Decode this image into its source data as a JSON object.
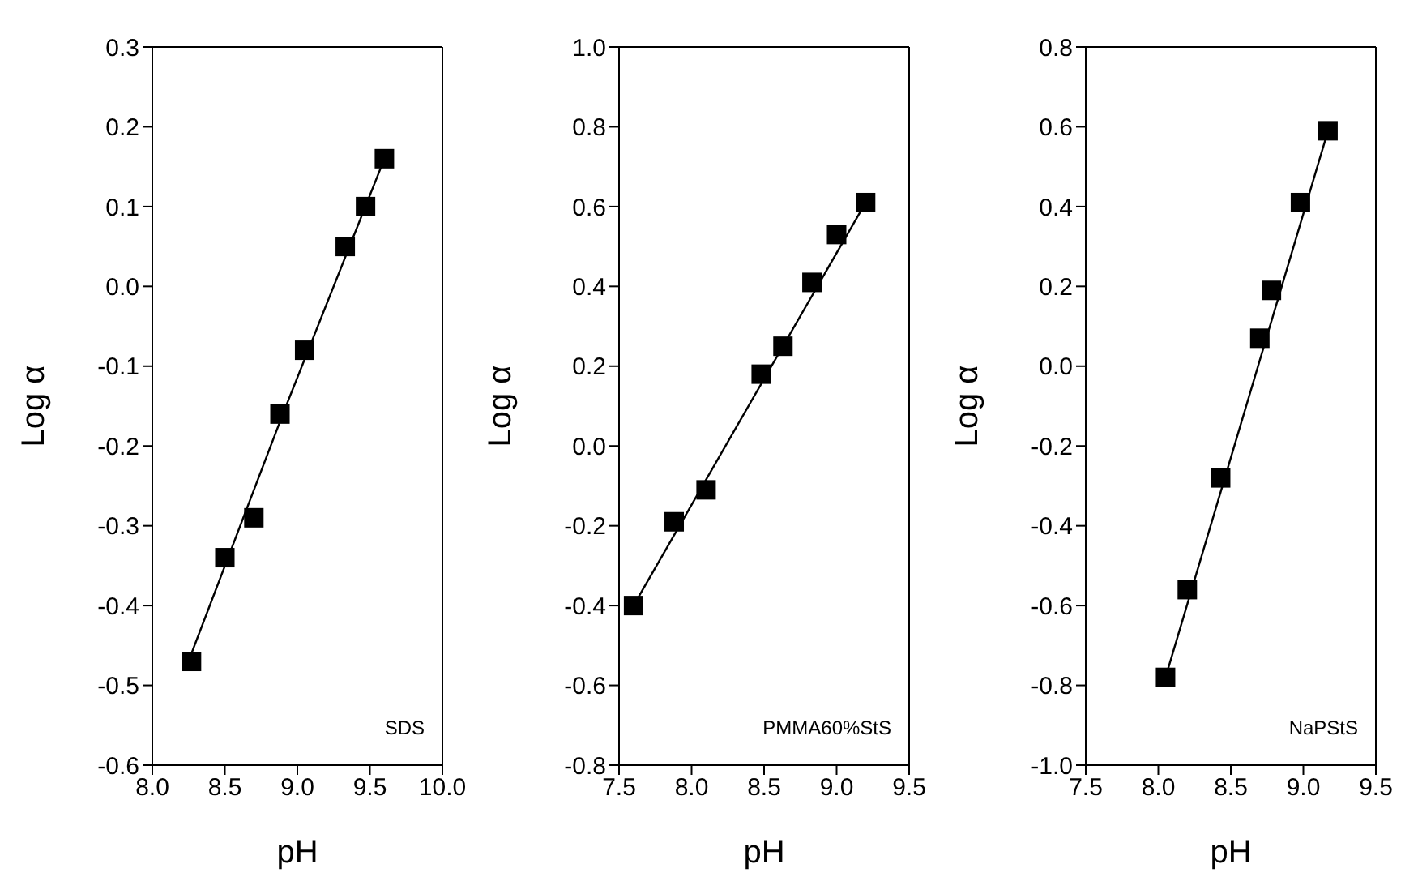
{
  "chart_data": [
    {
      "type": "scatter",
      "xlabel": "pH",
      "ylabel": "Log α",
      "annotations": [
        "SDS"
      ],
      "marker": "square",
      "xlim": [
        8.0,
        10.0
      ],
      "xticks": [
        {
          "value": 8,
          "label": "8.0"
        },
        8.5,
        {
          "value": 9,
          "label": "9.0"
        },
        9.5,
        {
          "value": 10,
          "label": "10.0"
        }
      ],
      "ylim": [
        -0.6,
        0.3
      ],
      "yticks": [
        -0.6,
        -0.5,
        -0.4,
        -0.3,
        -0.2,
        -0.1,
        {
          "value": 0,
          "label": "0.0"
        },
        0.1,
        0.2,
        0.3
      ],
      "series": [
        {
          "color": "#000000",
          "x": [
            8.27,
            8.5,
            8.7,
            8.88,
            9.05,
            9.33,
            9.47,
            9.6
          ],
          "values": [
            -0.47,
            -0.34,
            -0.29,
            -0.16,
            -0.08,
            0.05,
            0.1,
            0.16
          ]
        },
        {
          "type": "line",
          "color": "#000000",
          "marker": "none",
          "x": [
            8.27,
            8.9,
            9.6
          ],
          "values": [
            -0.46,
            -0.16,
            0.16
          ]
        }
      ]
    },
    {
      "type": "scatter",
      "xlabel": "pH",
      "ylabel": "Log α",
      "annotations": [
        "PMMA60%StS"
      ],
      "marker": "square",
      "xlim": [
        7.5,
        9.5
      ],
      "xticks": [
        7.5,
        {
          "value": 8,
          "label": "8.0"
        },
        8.5,
        {
          "value": 9,
          "label": "9.0"
        },
        9.5
      ],
      "ylim": [
        -0.8,
        1.0
      ],
      "yticks": [
        -0.8,
        -0.6,
        -0.4,
        -0.2,
        {
          "value": 0,
          "label": "0.0"
        },
        0.2,
        0.4,
        0.6,
        0.8,
        {
          "value": 1,
          "label": "1.0"
        }
      ],
      "series": [
        {
          "color": "#000000",
          "x": [
            7.6,
            7.88,
            8.1,
            8.48,
            8.63,
            8.83,
            9.0,
            9.2
          ],
          "values": [
            -0.4,
            -0.19,
            -0.11,
            0.18,
            0.25,
            0.41,
            0.53,
            0.61
          ]
        },
        {
          "type": "line",
          "color": "#000000",
          "marker": "none",
          "x": [
            7.6,
            9.2
          ],
          "values": [
            -0.4,
            0.61
          ]
        }
      ]
    },
    {
      "type": "scatter",
      "xlabel": "pH",
      "ylabel": "Log α",
      "annotations": [
        "NaPStS"
      ],
      "marker": "square",
      "xlim": [
        7.5,
        9.5
      ],
      "xticks": [
        7.5,
        {
          "value": 8,
          "label": "8.0"
        },
        8.5,
        {
          "value": 9,
          "label": "9.0"
        },
        9.5
      ],
      "ylim": [
        -1.0,
        0.8
      ],
      "yticks": [
        {
          "value": -1,
          "label": "-1.0"
        },
        -0.8,
        -0.6,
        -0.4,
        -0.2,
        {
          "value": 0,
          "label": "0.0"
        },
        0.2,
        0.4,
        0.6,
        0.8
      ],
      "series": [
        {
          "color": "#000000",
          "x": [
            8.05,
            8.2,
            8.43,
            8.7,
            8.78,
            8.98,
            9.17
          ],
          "values": [
            -0.78,
            -0.56,
            -0.28,
            0.07,
            0.19,
            0.41,
            0.59
          ]
        },
        {
          "type": "line",
          "color": "#000000",
          "marker": "none",
          "x": [
            8.05,
            9.17
          ],
          "values": [
            -0.78,
            0.59
          ]
        }
      ]
    }
  ]
}
